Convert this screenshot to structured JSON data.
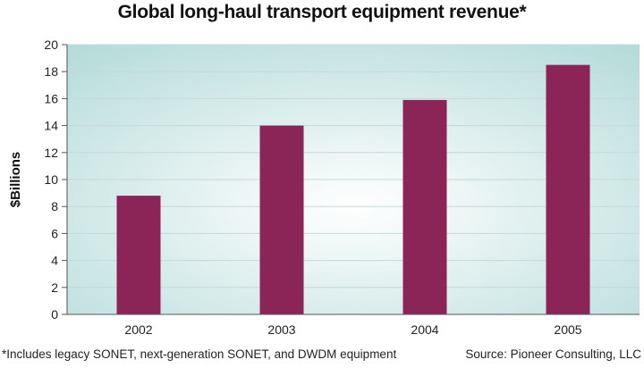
{
  "title": "Global long-haul transport equipment revenue*",
  "footnote": "*Includes legacy SONET, next-generation SONET, and DWDM equipment",
  "source": "Source: Pioneer Consulting, LLC",
  "colors": {
    "bar": "#8b2557",
    "plot_bg_center": "#ffffff",
    "plot_bg_edge": "#b6dcda",
    "grid": "#c5d8d6",
    "axis": "#555555"
  },
  "chart_data": {
    "type": "bar",
    "categories": [
      "2002",
      "2003",
      "2004",
      "2005"
    ],
    "values": [
      8.8,
      14.0,
      15.9,
      18.5
    ],
    "xlabel": "",
    "ylabel": "$Billions",
    "ylim": [
      0,
      20
    ],
    "yticks": [
      0,
      2,
      4,
      6,
      8,
      10,
      12,
      14,
      16,
      18,
      20
    ],
    "grid": true,
    "legend": "none"
  }
}
